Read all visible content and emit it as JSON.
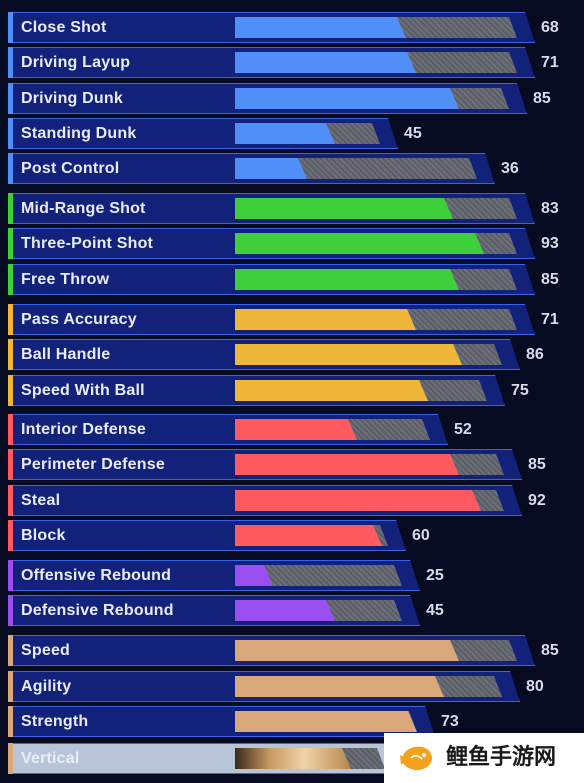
{
  "max_rating": 99,
  "attributes": [
    {
      "label": "Close Shot",
      "value": 68,
      "category": "finishing",
      "color": "#4f8ff7"
    },
    {
      "label": "Driving Layup",
      "value": 71,
      "category": "finishing",
      "color": "#4f8ff7"
    },
    {
      "label": "Driving Dunk",
      "value": 85,
      "category": "finishing",
      "color": "#4f8ff7"
    },
    {
      "label": "Standing Dunk",
      "value": 45,
      "category": "finishing",
      "color": "#4f8ff7"
    },
    {
      "label": "Post Control",
      "value": 36,
      "category": "finishing",
      "color": "#4f8ff7"
    },
    {
      "label": "Mid-Range Shot",
      "value": 83,
      "category": "shooting",
      "color": "#3fcf3a"
    },
    {
      "label": "Three-Point Shot",
      "value": 93,
      "category": "shooting",
      "color": "#3fcf3a"
    },
    {
      "label": "Free Throw",
      "value": 85,
      "category": "shooting",
      "color": "#3fcf3a"
    },
    {
      "label": "Pass Accuracy",
      "value": 71,
      "category": "playmaking",
      "color": "#f0b63a"
    },
    {
      "label": "Ball Handle",
      "value": 86,
      "category": "playmaking",
      "color": "#f0b63a"
    },
    {
      "label": "Speed With Ball",
      "value": 75,
      "category": "playmaking",
      "color": "#f0b63a"
    },
    {
      "label": "Interior Defense",
      "value": 52,
      "category": "defense",
      "color": "#ff5a5f"
    },
    {
      "label": "Perimeter Defense",
      "value": 85,
      "category": "defense",
      "color": "#ff5a5f"
    },
    {
      "label": "Steal",
      "value": 92,
      "category": "defense",
      "color": "#ff5a5f"
    },
    {
      "label": "Block",
      "value": 60,
      "category": "defense",
      "color": "#ff5a5f"
    },
    {
      "label": "Offensive Rebound",
      "value": 25,
      "category": "rebounding",
      "color": "#9b4ff0"
    },
    {
      "label": "Defensive Rebound",
      "value": 45,
      "category": "rebounding",
      "color": "#9b4ff0"
    },
    {
      "label": "Speed",
      "value": 85,
      "category": "physicals",
      "color": "#d9a77a"
    },
    {
      "label": "Agility",
      "value": 80,
      "category": "physicals",
      "color": "#d9a77a"
    },
    {
      "label": "Strength",
      "value": 73,
      "category": "physicals",
      "color": "#d9a77a"
    },
    {
      "label": "Vertical",
      "value": null,
      "category": "physicals",
      "color": "#d9a77a"
    }
  ],
  "watermark": {
    "text": "鲤鱼手游网",
    "icon": "carp-logo-icon"
  }
}
